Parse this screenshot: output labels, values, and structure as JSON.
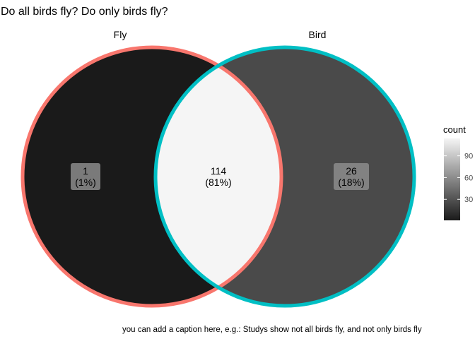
{
  "title": "Do all birds fly? Do only birds fly?",
  "caption": "you can add a caption here, e.g.: Studys show not all birds fly, and not only birds fly",
  "chart_data": {
    "type": "venn",
    "sets": [
      {
        "name": "Fly",
        "border_color": "#F8766D"
      },
      {
        "name": "Bird",
        "border_color": "#00BFC4"
      }
    ],
    "regions": [
      {
        "sets": [
          "Fly"
        ],
        "count": 1,
        "percent": "1%",
        "label": "1\n(1%)"
      },
      {
        "sets": [
          "Fly",
          "Bird"
        ],
        "count": 114,
        "percent": "81%",
        "label": "114\n(81%)"
      },
      {
        "sets": [
          "Bird"
        ],
        "count": 26,
        "percent": "18%",
        "label": "26\n(18%)"
      }
    ],
    "legend": {
      "title": "count",
      "ticks": [
        30,
        60,
        90
      ],
      "range": [
        1,
        114
      ],
      "low_color": "#1a1a1a",
      "high_color": "#f5f5f5",
      "placement": "right"
    }
  }
}
